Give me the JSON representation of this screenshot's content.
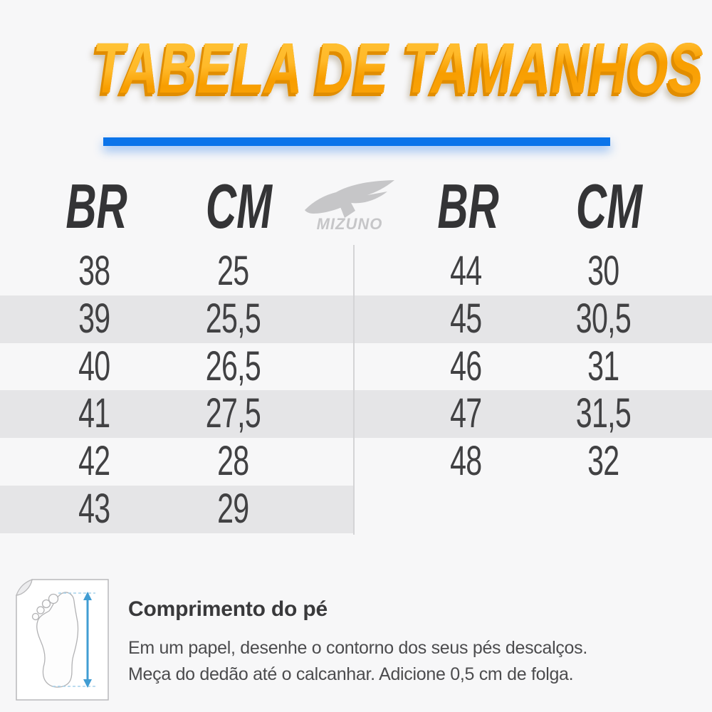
{
  "title": {
    "text": "TABELA DE TAMANHOS"
  },
  "brand": {
    "name": "Mizuno",
    "wordmark": "MIZUNO",
    "logo_icon": "mizuno-runbird-icon"
  },
  "table": {
    "left": {
      "headers": [
        "BR",
        "CM"
      ],
      "rows": [
        [
          "38",
          "25"
        ],
        [
          "39",
          "25,5"
        ],
        [
          "40",
          "26,5"
        ],
        [
          "41",
          "27,5"
        ],
        [
          "42",
          "28"
        ],
        [
          "43",
          "29"
        ]
      ]
    },
    "right": {
      "headers": [
        "BR",
        "CM"
      ],
      "rows": [
        [
          "44",
          "30"
        ],
        [
          "45",
          "30,5"
        ],
        [
          "46",
          "31"
        ],
        [
          "47",
          "31,5"
        ],
        [
          "48",
          "32"
        ]
      ]
    }
  },
  "chart_data": {
    "type": "table",
    "title": "TABELA DE TAMANHOS",
    "columns": [
      "BR",
      "CM",
      "BR",
      "CM"
    ],
    "left_rows": [
      [
        "38",
        "25"
      ],
      [
        "39",
        "25,5"
      ],
      [
        "40",
        "26,5"
      ],
      [
        "41",
        "27,5"
      ],
      [
        "42",
        "28"
      ],
      [
        "43",
        "29"
      ]
    ],
    "right_rows": [
      [
        "44",
        "30"
      ],
      [
        "45",
        "30,5"
      ],
      [
        "46",
        "31"
      ],
      [
        "47",
        "31,5"
      ],
      [
        "48",
        "32"
      ]
    ],
    "notes": "BR shoe size to foot length in cm; zebra-striped rows; Mizuno logo between the two half-tables"
  },
  "footer": {
    "heading": "Comprimento do pé",
    "line1": "Em um papel, desenhe o contorno dos seus pés descalços.",
    "line2": "Meça do dedão até o calcanhar. Adicione 0,5 cm de folga."
  },
  "colors": {
    "background": "#f7f7f8",
    "title_orange": "#ffab0f",
    "title_shadow_orange": "#e18d00",
    "accent_blue": "#0b74ea",
    "stripe_gray": "#e5e5e7",
    "header_text": "#343436",
    "number_text": "#414143",
    "logo_gray": "#c6c6c8",
    "measure_blue": "#419dd3",
    "measure_dash_blue": "#a6d2ec"
  }
}
